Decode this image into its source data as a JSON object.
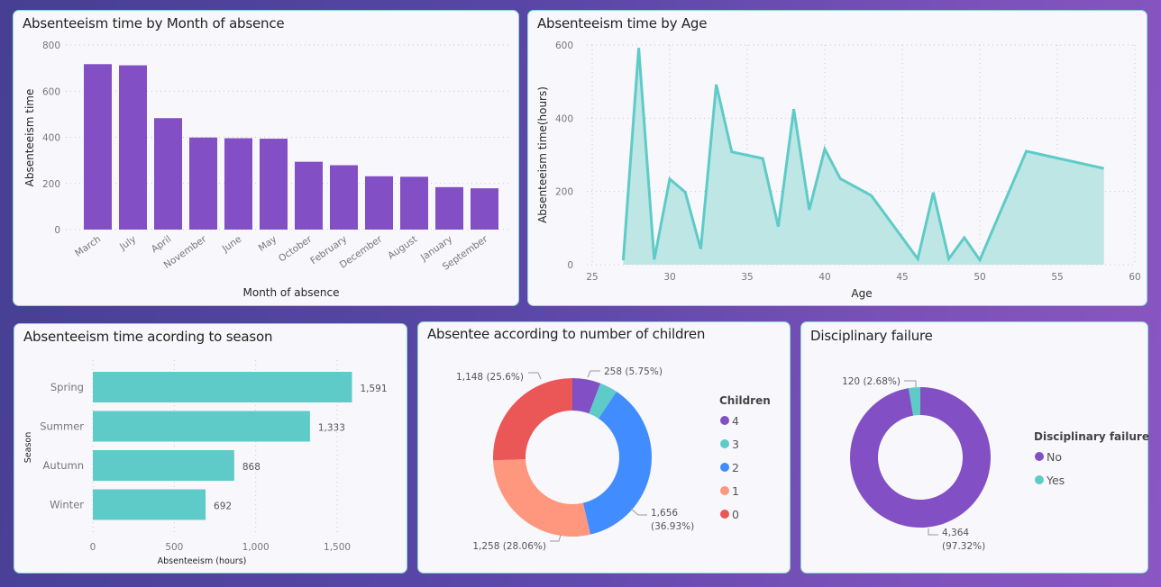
{
  "colors": {
    "purple": "#8250c4",
    "teal": "#5ecbc8",
    "blue": "#418cff",
    "salmon": "#ff977e",
    "red": "#eb5757",
    "teal_fill": "#bde6e5"
  },
  "chart_data": [
    {
      "id": "month",
      "type": "bar",
      "title": "Absenteeism time by Month of absence",
      "xlabel": "Month of absence",
      "ylabel": "Absenteeism time",
      "categories": [
        "March",
        "July",
        "April",
        "November",
        "June",
        "May",
        "October",
        "February",
        "December",
        "August",
        "January",
        "September"
      ],
      "values": [
        717,
        712,
        483,
        399,
        396,
        394,
        294,
        279,
        231,
        229,
        184,
        179
      ],
      "ylim": [
        0,
        800
      ],
      "yticks": [
        0,
        200,
        400,
        600,
        800
      ],
      "ytick_labels": [
        "0",
        "200",
        "400",
        "600",
        "800"
      ],
      "grid": true,
      "color": "#8250c4"
    },
    {
      "id": "age",
      "type": "area",
      "title": "Absenteeism time by Age",
      "xlabel": "Age",
      "ylabel": "Absenteeism time(hours)",
      "x": [
        27,
        28,
        29,
        30,
        31,
        32,
        33,
        34,
        36,
        37,
        38,
        39,
        40,
        41,
        43,
        46,
        47,
        48,
        49,
        50,
        53,
        58
      ],
      "values": [
        12,
        592,
        14,
        234,
        198,
        43,
        492,
        308,
        290,
        104,
        425,
        150,
        316,
        235,
        189,
        16,
        197,
        16,
        74,
        13,
        310,
        263
      ],
      "xlim": [
        25,
        60
      ],
      "ylim": [
        0,
        600
      ],
      "xticks": [
        25,
        30,
        35,
        40,
        45,
        50,
        55,
        60
      ],
      "xtick_labels": [
        "25",
        "30",
        "35",
        "40",
        "45",
        "50",
        "55",
        "60"
      ],
      "yticks": [
        0,
        200,
        400,
        600
      ],
      "ytick_labels": [
        "0",
        "200",
        "400",
        "600"
      ],
      "grid": true,
      "color": "#5ecbc8"
    },
    {
      "id": "season",
      "type": "bar",
      "orientation": "horizontal",
      "title": "Absenteeism time acording to season",
      "xlabel": "Absenteeism (hours)",
      "ylabel": "Season",
      "categories": [
        "Spring",
        "Summer",
        "Autumn",
        "Winter"
      ],
      "values": [
        1591,
        1333,
        868,
        692
      ],
      "value_labels": [
        "1,591",
        "1,333",
        "868",
        "692"
      ],
      "xlim": [
        0,
        1750
      ],
      "xticks": [
        0,
        500,
        1000,
        1500
      ],
      "xtick_labels": [
        "0",
        "500",
        "1,000",
        "1,500"
      ],
      "grid": true,
      "color": "#5ecbc8"
    },
    {
      "id": "children",
      "type": "pie",
      "donut": true,
      "title": "Absentee according to number of children",
      "legend_title": "Children",
      "legend_position": "right",
      "slices": [
        {
          "label": "4",
          "value": 258,
          "data_label": "258 (5.75%)",
          "color": "#8250c4"
        },
        {
          "label": "3",
          "value": 164,
          "data_label": "",
          "color": "#5ecbc8"
        },
        {
          "label": "2",
          "value": 1656,
          "data_label": "1,656\n(36.93%)",
          "color": "#418cff"
        },
        {
          "label": "1",
          "value": 1258,
          "data_label": "1,258 (28.06%)",
          "color": "#ff977e"
        },
        {
          "label": "0",
          "value": 1148,
          "data_label": "1,148 (25.6%)",
          "color": "#eb5757"
        }
      ]
    },
    {
      "id": "disciplinary",
      "type": "pie",
      "donut": true,
      "title": "Disciplinary failure",
      "legend_title": "Disciplinary failure",
      "legend_position": "right",
      "slices": [
        {
          "label": "No",
          "value": 4364,
          "data_label": "4,364\n(97.32%)",
          "color": "#8250c4"
        },
        {
          "label": "Yes",
          "value": 120,
          "data_label": "120 (2.68%)",
          "color": "#5ecbc8"
        }
      ]
    }
  ]
}
